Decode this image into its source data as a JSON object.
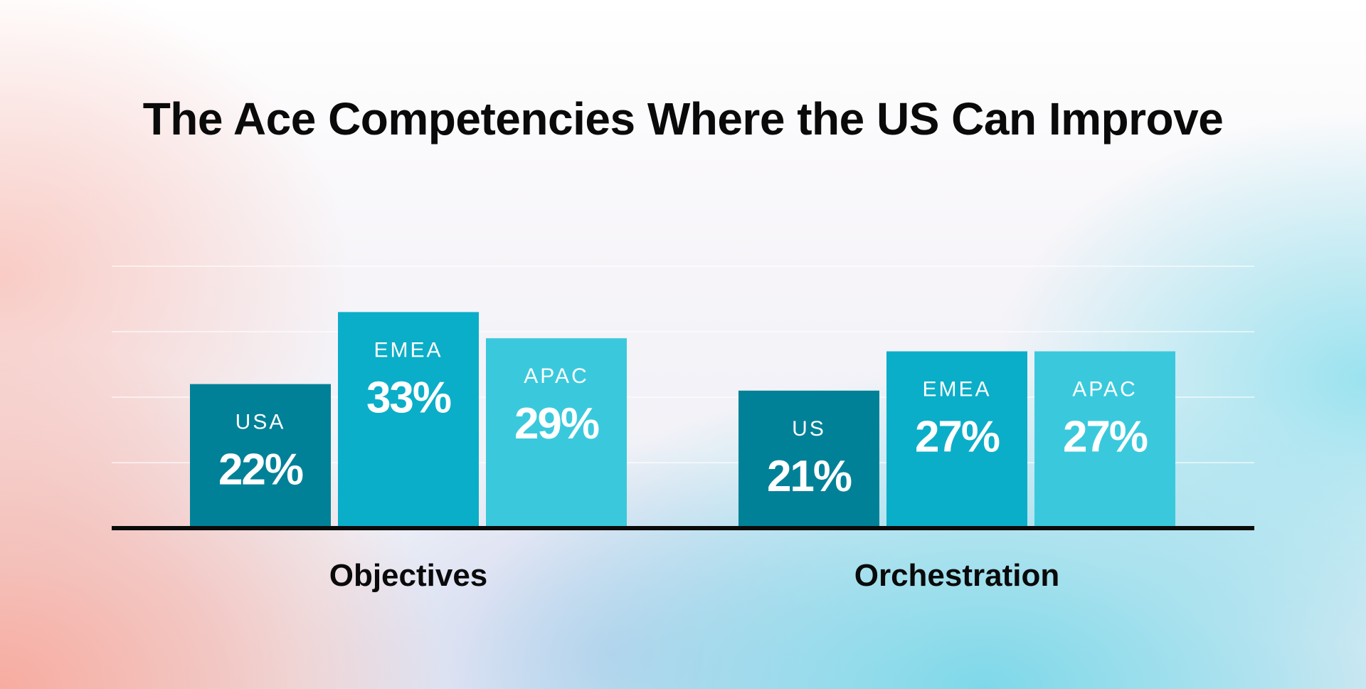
{
  "chart_data": {
    "type": "bar",
    "title": "The Ace Competencies Where the US Can Improve",
    "xlabel": "",
    "ylabel": "",
    "ylim": [
      0,
      50
    ],
    "grid": true,
    "groups": [
      {
        "name": "Objectives",
        "bars": [
          {
            "label": "USA",
            "value": 22,
            "display": "22%",
            "color": "#008197"
          },
          {
            "label": "EMEA",
            "value": 33,
            "display": "33%",
            "color": "#0baec8"
          },
          {
            "label": "APAC",
            "value": 29,
            "display": "29%",
            "color": "#3ac9dc"
          }
        ]
      },
      {
        "name": "Orchestration",
        "bars": [
          {
            "label": "US",
            "value": 21,
            "display": "21%",
            "color": "#008197"
          },
          {
            "label": "EMEA",
            "value": 27,
            "display": "27%",
            "color": "#0baec8"
          },
          {
            "label": "APAC",
            "value": 27,
            "display": "27%",
            "color": "#3ac9dc"
          }
        ]
      }
    ]
  }
}
